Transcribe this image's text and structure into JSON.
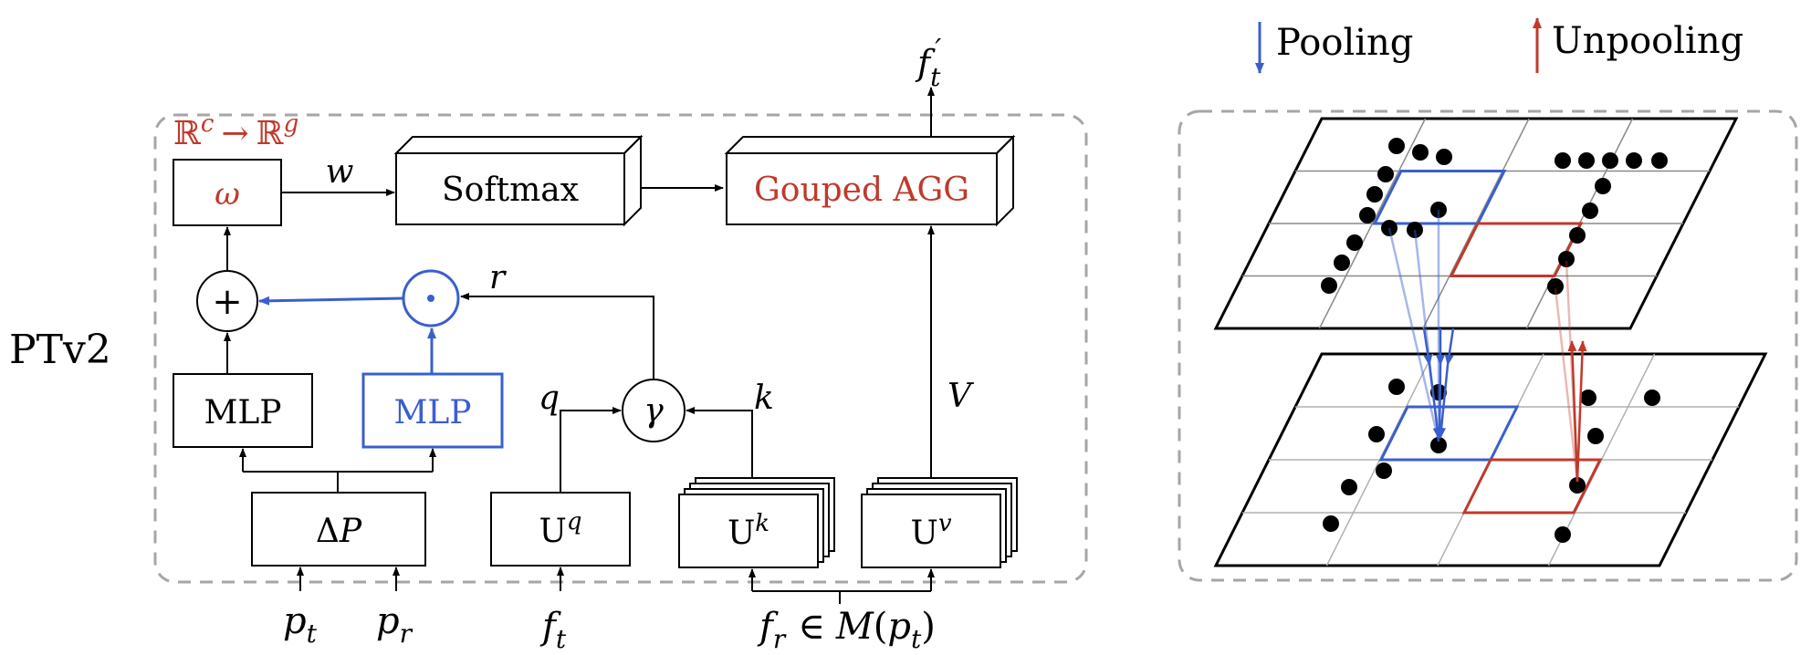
{
  "left_panel": {
    "side_label": "PTv2",
    "mapping": {
      "left": "ℝ",
      "left_sup": "c",
      "arrow": "→",
      "right": "ℝ",
      "right_sup": "g"
    },
    "omega": "ω",
    "softmax": "Softmax",
    "grouped_agg": "Gouped AGG",
    "output": {
      "base": "f",
      "sub": "t",
      "prime": "′"
    },
    "w_label": "w",
    "r_label": "r",
    "q_label": "q",
    "k_label": "k",
    "v_label": "V",
    "plus_symbol": "+",
    "odot_symbol": "⊙",
    "gamma_symbol": "γ",
    "mlp_left": "MLP",
    "mlp_right": "MLP",
    "delta_p": {
      "delta": "Δ",
      "p": "P"
    },
    "uq": {
      "base": "U",
      "sup": "q"
    },
    "uk": {
      "base": "U",
      "sup": "k"
    },
    "uv": {
      "base": "U",
      "sup": "v"
    },
    "inputs": {
      "pt": {
        "base": "p",
        "sub": "t"
      },
      "pr": {
        "base": "p",
        "sub": "r"
      },
      "ft": {
        "base": "f",
        "sub": "t"
      },
      "fr": {
        "base": "f",
        "sub": "r",
        "in": "∈",
        "set": "M",
        "open": "(",
        "p": "p",
        "psub": "t",
        "close": ")"
      }
    }
  },
  "right_panel": {
    "legend": {
      "pooling": "Pooling",
      "unpooling": "Unpooling"
    }
  },
  "colors": {
    "red": "#c0392b",
    "blue": "#3a5fcd",
    "dash": "#a6a6a6",
    "ink": "#000000"
  }
}
